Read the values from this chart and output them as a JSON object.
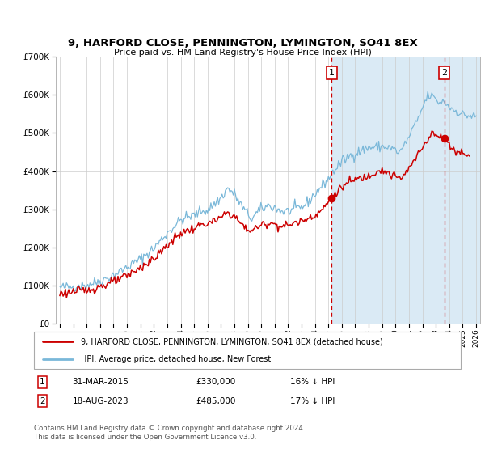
{
  "title": "9, HARFORD CLOSE, PENNINGTON, LYMINGTON, SO41 8EX",
  "subtitle": "Price paid vs. HM Land Registry's House Price Index (HPI)",
  "legend_line1": "9, HARFORD CLOSE, PENNINGTON, LYMINGTON, SO41 8EX (detached house)",
  "legend_line2": "HPI: Average price, detached house, New Forest",
  "annotation1_label": "1",
  "annotation1_date": "31-MAR-2015",
  "annotation1_price": "£330,000",
  "annotation1_hpi": "16% ↓ HPI",
  "annotation2_label": "2",
  "annotation2_date": "18-AUG-2023",
  "annotation2_price": "£485,000",
  "annotation2_hpi": "17% ↓ HPI",
  "footer": "Contains HM Land Registry data © Crown copyright and database right 2024.\nThis data is licensed under the Open Government Licence v3.0.",
  "hpi_color": "#7ab8d9",
  "price_color": "#cc0000",
  "dot_color": "#cc0000",
  "vline_color": "#cc0000",
  "background_after_color": "#daeaf5",
  "ylim": [
    0,
    700000
  ],
  "yticks": [
    0,
    100000,
    200000,
    300000,
    400000,
    500000,
    600000,
    700000
  ],
  "ytick_labels": [
    "£0",
    "£100K",
    "£200K",
    "£300K",
    "£400K",
    "£500K",
    "£600K",
    "£700K"
  ],
  "purchase1_year": 2015.25,
  "purchase2_year": 2023.63,
  "purchase1_price": 330000,
  "purchase2_price": 485000,
  "xmin": 1994.7,
  "xmax": 2026.3
}
